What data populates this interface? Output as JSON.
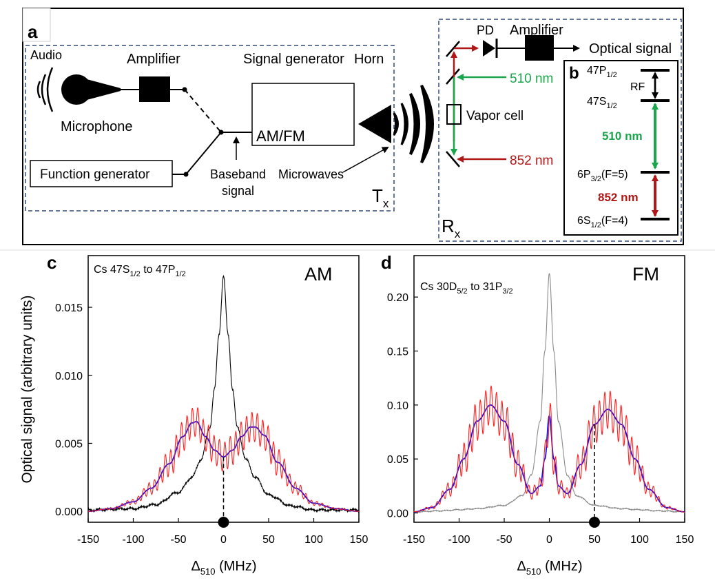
{
  "panel_a": {
    "label": "a",
    "audio": "Audio",
    "amplifier": "Amplifier",
    "signal_generator": "Signal generator",
    "horn": "Horn",
    "microphone": "Microphone",
    "am_fm": "AM/FM",
    "function_generator": "Function generator",
    "baseband_1": "Baseband",
    "baseband_2": "signal",
    "microwaves": "Microwaves",
    "tx_main": "T",
    "tx_sub": "x",
    "rx_main": "R",
    "rx_sub": "x",
    "pd": "PD",
    "amplifier_rx": "Amplifier",
    "optical_signal": "Optical signal",
    "wl_510": "510 nm",
    "vapor_cell": "Vapor cell",
    "wl_852": "852 nm"
  },
  "panel_b": {
    "label": "b",
    "level_47p": {
      "main": "47P",
      "sub": "1/2"
    },
    "rf": "RF",
    "level_47s": {
      "main": "47S",
      "sub": "1/2"
    },
    "transition_510": "510 nm",
    "level_6p": {
      "main": "6P",
      "sub": "3/2",
      "tail": "(F=5)"
    },
    "transition_852": "852 nm",
    "level_6s": {
      "main": "6S",
      "sub": "1/2",
      "tail": "(F=4)"
    }
  },
  "colors": {
    "red": "#b01818",
    "green": "#1aa64a",
    "blue": "#1010ee",
    "black": "#000000",
    "gray": "#8a8a8a",
    "dash_blue": "#2e4a7a",
    "trace_red": "#ff2020"
  },
  "chart_data": [
    {
      "id": "c",
      "panel_label": "c",
      "type": "line",
      "title_main": "Cs 47S",
      "title_sub1": "1/2",
      "title_mid": " to 47P",
      "title_sub2": "1/2",
      "corner_label": "AM",
      "xlabel_main": "Δ",
      "xlabel_sub": "510",
      "xlabel_unit": " (MHz)",
      "ylabel": "Optical signal (arbitrary units)",
      "xlim": [
        -150,
        150
      ],
      "ylim": [
        -0.0008,
        0.0188
      ],
      "xticks": [
        -150,
        -100,
        -50,
        0,
        50,
        100,
        150
      ],
      "yticks": [
        0.0,
        0.005,
        0.01,
        0.015
      ],
      "ytick_labels": [
        "0.000",
        "0.005",
        "0.010",
        "0.015"
      ],
      "marker_x": 0,
      "dashed_line_x": 0,
      "series": [
        {
          "name": "black",
          "x": [
            -150,
            -100,
            -75,
            -50,
            -35,
            -25,
            -15,
            -10,
            -5,
            0,
            5,
            10,
            15,
            25,
            35,
            50,
            75,
            100,
            150
          ],
          "y": [
            0.0001,
            0.0002,
            0.0005,
            0.0014,
            0.0025,
            0.0038,
            0.0062,
            0.009,
            0.013,
            0.0173,
            0.013,
            0.009,
            0.0062,
            0.0038,
            0.0025,
            0.0012,
            0.0004,
            0.0001,
            0.0001
          ]
        },
        {
          "name": "blue",
          "x": [
            -150,
            -125,
            -100,
            -80,
            -60,
            -45,
            -35,
            -30,
            -20,
            -10,
            0,
            10,
            20,
            30,
            35,
            45,
            60,
            80,
            100,
            125,
            150
          ],
          "y": [
            0.0,
            0.0002,
            0.0007,
            0.0017,
            0.0035,
            0.0055,
            0.0065,
            0.0066,
            0.0055,
            0.0045,
            0.004,
            0.0045,
            0.0055,
            0.0062,
            0.0062,
            0.0056,
            0.0036,
            0.0017,
            0.0006,
            0.0002,
            0.0
          ]
        },
        {
          "name": "red",
          "x": [
            -150,
            -125,
            -100,
            -80,
            -60,
            -45,
            -35,
            -30,
            -20,
            -10,
            0,
            10,
            20,
            30,
            35,
            45,
            60,
            80,
            100,
            125,
            150
          ],
          "y": [
            0.0,
            0.0002,
            0.0007,
            0.0017,
            0.0035,
            0.0055,
            0.0065,
            0.0066,
            0.0055,
            0.0045,
            0.004,
            0.0045,
            0.0055,
            0.0062,
            0.0062,
            0.0056,
            0.0036,
            0.0017,
            0.0006,
            0.0002,
            0.0
          ],
          "oscillation": 0.0011
        }
      ]
    },
    {
      "id": "d",
      "panel_label": "d",
      "type": "line",
      "title_main": "Cs 30D",
      "title_sub1": "5/2",
      "title_mid": " to 31P",
      "title_sub2": "3/2",
      "corner_label": "FM",
      "xlabel_main": "Δ",
      "xlabel_sub": "510",
      "xlabel_unit": " (MHz)",
      "ylabel": "",
      "xlim": [
        -150,
        150
      ],
      "ylim": [
        -0.0086,
        0.2384
      ],
      "xticks": [
        -150,
        -100,
        -50,
        0,
        50,
        100,
        150
      ],
      "yticks": [
        0.0,
        0.05,
        0.1,
        0.15,
        0.2
      ],
      "ytick_labels": [
        "0.00",
        "0.05",
        "0.10",
        "0.15",
        "0.20"
      ],
      "marker_x": 50,
      "dashed_line_x": 50,
      "series": [
        {
          "name": "gray",
          "x": [
            -150,
            -120,
            -100,
            -80,
            -50,
            -30,
            -20,
            -10,
            -5,
            0,
            5,
            10,
            20,
            30,
            50,
            80,
            100,
            120,
            150
          ],
          "y": [
            0.001,
            0.002,
            0.003,
            0.004,
            0.007,
            0.016,
            0.035,
            0.085,
            0.15,
            0.222,
            0.15,
            0.085,
            0.035,
            0.016,
            0.007,
            0.004,
            0.003,
            0.002,
            0.001
          ]
        },
        {
          "name": "blue",
          "x": [
            -150,
            -130,
            -110,
            -95,
            -80,
            -65,
            -50,
            -35,
            -20,
            -10,
            -5,
            0,
            5,
            10,
            20,
            35,
            50,
            65,
            80,
            95,
            110,
            130,
            150
          ],
          "y": [
            0.001,
            0.005,
            0.022,
            0.05,
            0.085,
            0.1,
            0.085,
            0.045,
            0.018,
            0.025,
            0.05,
            0.09,
            0.05,
            0.025,
            0.018,
            0.045,
            0.082,
            0.096,
            0.082,
            0.05,
            0.022,
            0.005,
            0.001
          ]
        },
        {
          "name": "red",
          "x": [
            -150,
            -130,
            -110,
            -95,
            -80,
            -65,
            -50,
            -35,
            -20,
            -10,
            -5,
            0,
            5,
            10,
            20,
            35,
            50,
            65,
            80,
            95,
            110,
            130,
            150
          ],
          "y": [
            0.001,
            0.005,
            0.022,
            0.05,
            0.085,
            0.1,
            0.085,
            0.045,
            0.018,
            0.025,
            0.05,
            0.09,
            0.05,
            0.025,
            0.018,
            0.045,
            0.082,
            0.096,
            0.082,
            0.05,
            0.022,
            0.005,
            0.001
          ],
          "oscillation": 0.018
        }
      ]
    }
  ]
}
